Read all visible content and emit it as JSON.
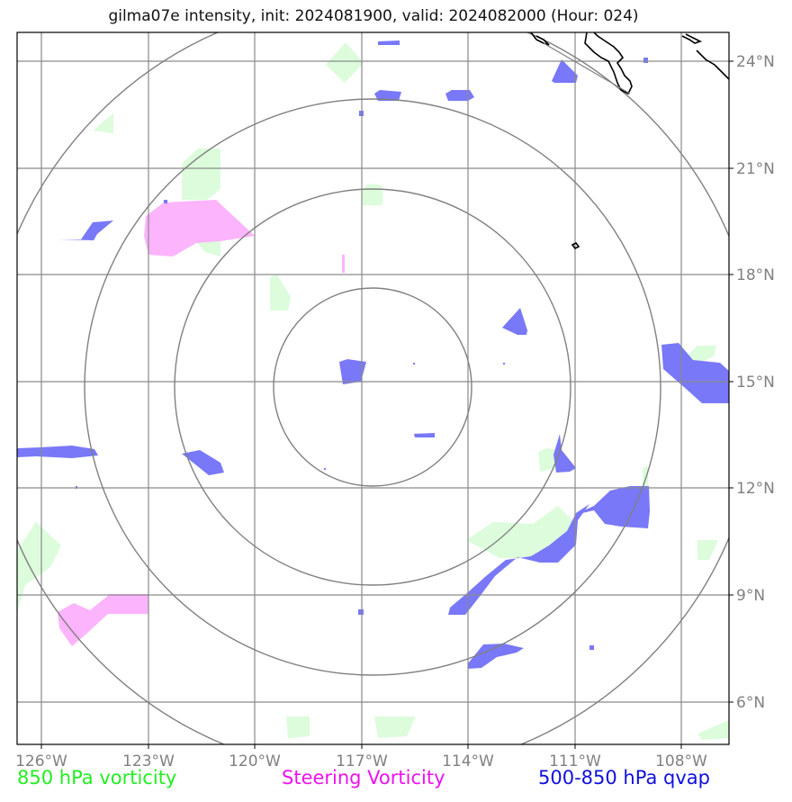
{
  "title": "gilma07e intensity, init: 2024081900, valid: 2024082000 (Hour: 024)",
  "legend": [
    {
      "label": "850 hPa vorticity",
      "color": "#22ee22"
    },
    {
      "label": "Steering Vorticity",
      "color": "#ee11ee"
    },
    {
      "label": "500-850 hPa qvap",
      "color": "#1010dd"
    }
  ],
  "axes": {
    "lon_labels": [
      "126°W",
      "123°W",
      "120°W",
      "117°W",
      "114°W",
      "111°W",
      "108°W"
    ],
    "lat_labels": [
      "24°N",
      "21°N",
      "18°N",
      "15°N",
      "12°N",
      "9°N",
      "6°N"
    ],
    "lon_values": [
      -126,
      -123,
      -120,
      -117,
      -114,
      -111,
      -108
    ],
    "lat_values": [
      24,
      21,
      18,
      15,
      12,
      9,
      6
    ],
    "lon_range": [
      -126.7,
      -106.6
    ],
    "lat_range": [
      4.9,
      24.8
    ],
    "grid": true
  },
  "storm_center": {
    "lon": -117.3,
    "lat": 14.9
  },
  "range_rings_count": 4,
  "colors": {
    "qvap": "#7878f8",
    "vort850": "#dcfcdc",
    "steering": "#fcb4fc",
    "grid": "#808080",
    "coast": "#000000"
  }
}
